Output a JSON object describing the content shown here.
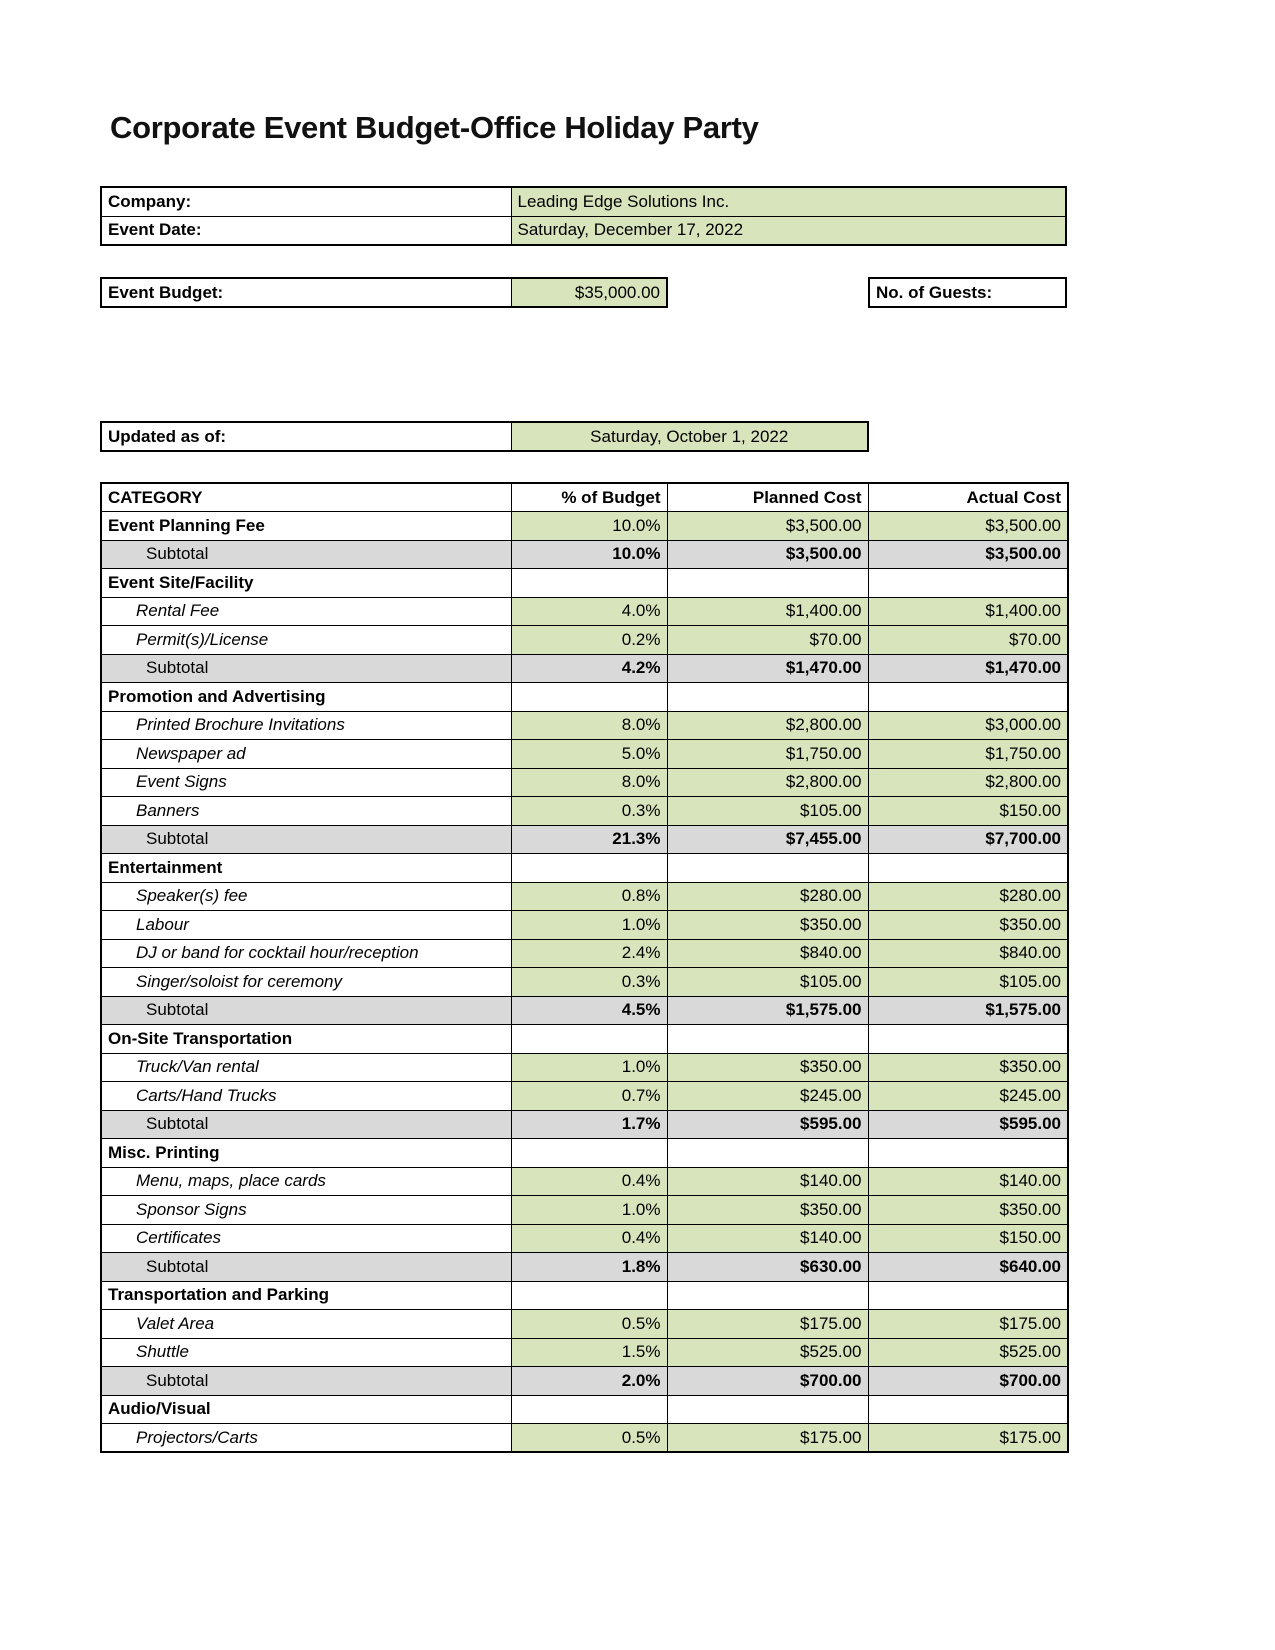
{
  "title": "Corporate Event Budget-Office Holiday Party",
  "colors": {
    "green": "#d8e4bc",
    "gray": "#d9d9d9"
  },
  "info": {
    "company_label": "Company:",
    "company_value": "Leading Edge Solutions Inc.",
    "event_date_label": "Event Date:",
    "event_date_value": "Saturday, December 17, 2022"
  },
  "budget": {
    "label": "Event Budget:",
    "value": "$35,000.00"
  },
  "guests": {
    "label": "No. of Guests:",
    "value": ""
  },
  "updated": {
    "label": "Updated as of:",
    "value": "Saturday, October 1, 2022"
  },
  "budget_table": {
    "headers": [
      "CATEGORY",
      "% of Budget",
      "Planned Cost",
      "Actual Cost"
    ],
    "rows": [
      {
        "type": "category-values",
        "label": "Event Planning Fee",
        "percent": "10.0%",
        "planned": "$3,500.00",
        "actual": "$3,500.00"
      },
      {
        "type": "subtotal",
        "label": "Subtotal",
        "percent": "10.0%",
        "planned": "$3,500.00",
        "actual": "$3,500.00"
      },
      {
        "type": "category",
        "label": "Event Site/Facility",
        "percent": "",
        "planned": "",
        "actual": ""
      },
      {
        "type": "item",
        "label": "Rental Fee",
        "percent": "4.0%",
        "planned": "$1,400.00",
        "actual": "$1,400.00"
      },
      {
        "type": "item",
        "label": "Permit(s)/License",
        "percent": "0.2%",
        "planned": "$70.00",
        "actual": "$70.00"
      },
      {
        "type": "subtotal",
        "label": "Subtotal",
        "percent": "4.2%",
        "planned": "$1,470.00",
        "actual": "$1,470.00"
      },
      {
        "type": "category",
        "label": "Promotion and Advertising",
        "percent": "",
        "planned": "",
        "actual": ""
      },
      {
        "type": "item",
        "label": "Printed Brochure Invitations",
        "percent": "8.0%",
        "planned": "$2,800.00",
        "actual": "$3,000.00"
      },
      {
        "type": "item",
        "label": "Newspaper ad",
        "percent": "5.0%",
        "planned": "$1,750.00",
        "actual": "$1,750.00"
      },
      {
        "type": "item",
        "label": "Event Signs",
        "percent": "8.0%",
        "planned": "$2,800.00",
        "actual": "$2,800.00"
      },
      {
        "type": "item",
        "label": "Banners",
        "percent": "0.3%",
        "planned": "$105.00",
        "actual": "$150.00"
      },
      {
        "type": "subtotal",
        "label": "Subtotal",
        "percent": "21.3%",
        "planned": "$7,455.00",
        "actual": "$7,700.00"
      },
      {
        "type": "category",
        "label": "Entertainment",
        "percent": "",
        "planned": "",
        "actual": ""
      },
      {
        "type": "item",
        "label": "Speaker(s) fee",
        "percent": "0.8%",
        "planned": "$280.00",
        "actual": "$280.00"
      },
      {
        "type": "item",
        "label": "Labour",
        "percent": "1.0%",
        "planned": "$350.00",
        "actual": "$350.00"
      },
      {
        "type": "item",
        "label": "DJ or band for cocktail hour/reception",
        "percent": "2.4%",
        "planned": "$840.00",
        "actual": "$840.00"
      },
      {
        "type": "item",
        "label": "Singer/soloist for ceremony",
        "percent": "0.3%",
        "planned": "$105.00",
        "actual": "$105.00"
      },
      {
        "type": "subtotal",
        "label": "Subtotal",
        "percent": "4.5%",
        "planned": "$1,575.00",
        "actual": "$1,575.00"
      },
      {
        "type": "category",
        "label": "On-Site Transportation",
        "percent": "",
        "planned": "",
        "actual": ""
      },
      {
        "type": "item",
        "label": "Truck/Van rental",
        "percent": "1.0%",
        "planned": "$350.00",
        "actual": "$350.00"
      },
      {
        "type": "item",
        "label": "Carts/Hand Trucks",
        "percent": "0.7%",
        "planned": "$245.00",
        "actual": "$245.00"
      },
      {
        "type": "subtotal",
        "label": "Subtotal",
        "percent": "1.7%",
        "planned": "$595.00",
        "actual": "$595.00"
      },
      {
        "type": "category",
        "label": "Misc. Printing",
        "percent": "",
        "planned": "",
        "actual": ""
      },
      {
        "type": "item",
        "label": "Menu, maps, place cards",
        "percent": "0.4%",
        "planned": "$140.00",
        "actual": "$140.00"
      },
      {
        "type": "item",
        "label": "Sponsor Signs",
        "percent": "1.0%",
        "planned": "$350.00",
        "actual": "$350.00"
      },
      {
        "type": "item",
        "label": "Certificates",
        "percent": "0.4%",
        "planned": "$140.00",
        "actual": "$150.00"
      },
      {
        "type": "subtotal",
        "label": "Subtotal",
        "percent": "1.8%",
        "planned": "$630.00",
        "actual": "$640.00"
      },
      {
        "type": "category",
        "label": "Transportation and Parking",
        "percent": "",
        "planned": "",
        "actual": ""
      },
      {
        "type": "item",
        "label": "Valet Area",
        "percent": "0.5%",
        "planned": "$175.00",
        "actual": "$175.00"
      },
      {
        "type": "item",
        "label": "Shuttle",
        "percent": "1.5%",
        "planned": "$525.00",
        "actual": "$525.00"
      },
      {
        "type": "subtotal",
        "label": "Subtotal",
        "percent": "2.0%",
        "planned": "$700.00",
        "actual": "$700.00"
      },
      {
        "type": "category",
        "label": "Audio/Visual",
        "percent": "",
        "planned": "",
        "actual": ""
      },
      {
        "type": "item",
        "label": "Projectors/Carts",
        "percent": "0.5%",
        "planned": "$175.00",
        "actual": "$175.00"
      }
    ]
  }
}
